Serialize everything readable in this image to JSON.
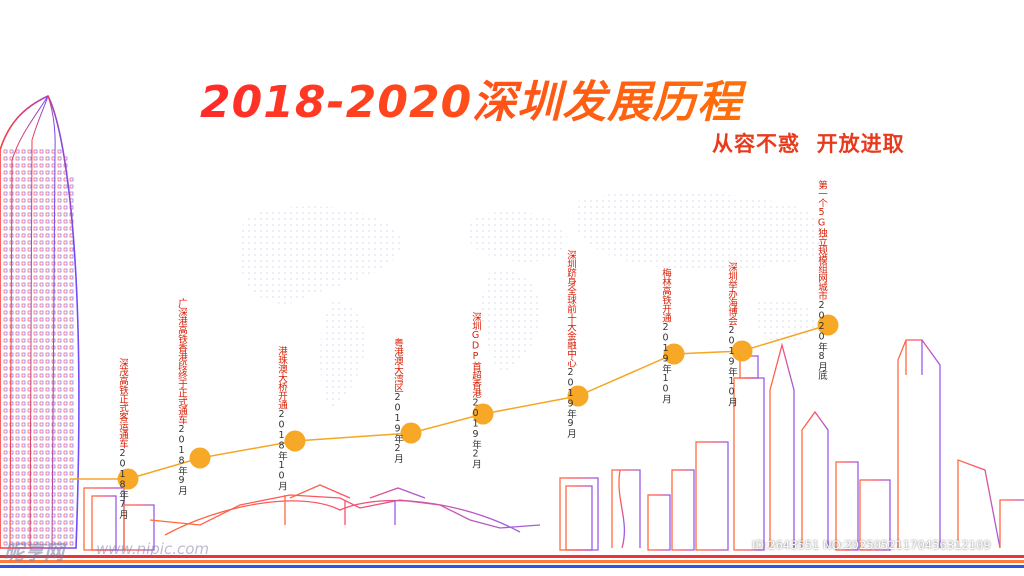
{
  "title": "2018-2020深圳发展历程",
  "subtitle": "从容不惑  开放进取",
  "colors": {
    "accent": "#ff5a14",
    "title_start": "#ff2a2a",
    "title_end": "#ff8a00",
    "timeline_line": "#f5a623",
    "milestone_dot": "#f7a826",
    "label_red": "#d81e06",
    "skyline_red": "#ff3b3b",
    "skyline_purple": "#8a5cf0",
    "bottom_stripe_red": "#e8343a",
    "bottom_stripe_blue": "#3a4fe0"
  },
  "milestones": [
    {
      "date": "2018年7月",
      "event": "深茂高铁正式客运通车"
    },
    {
      "date": "2018年9月",
      "event": "广深港高铁香港段终于正式通车"
    },
    {
      "date": "2018年10月",
      "event": "港珠澳大桥开通"
    },
    {
      "date": "2019年2月",
      "event": "粤港澳大湾区"
    },
    {
      "date": "2019年2月",
      "event": "深圳GDP首超香港"
    },
    {
      "date": "2019年9月",
      "event": "深圳跻身全球前十大金融中心"
    },
    {
      "date": "2019年10月",
      "event": "梅林高铁开通"
    },
    {
      "date": "2019年10月",
      "event": "深圳举办海博会"
    },
    {
      "date": "2020年8月底",
      "event": "第一个5G独立规模组网城市"
    }
  ],
  "watermark": {
    "left": "昵享网",
    "mid": "www.nipic.com",
    "right": "ID:2643551 NO:20250521170456312109"
  },
  "icons": {
    "tower": "skyscraper-tower-icon",
    "skyline": "city-skyline-icon",
    "map": "world-map-dots-icon"
  }
}
